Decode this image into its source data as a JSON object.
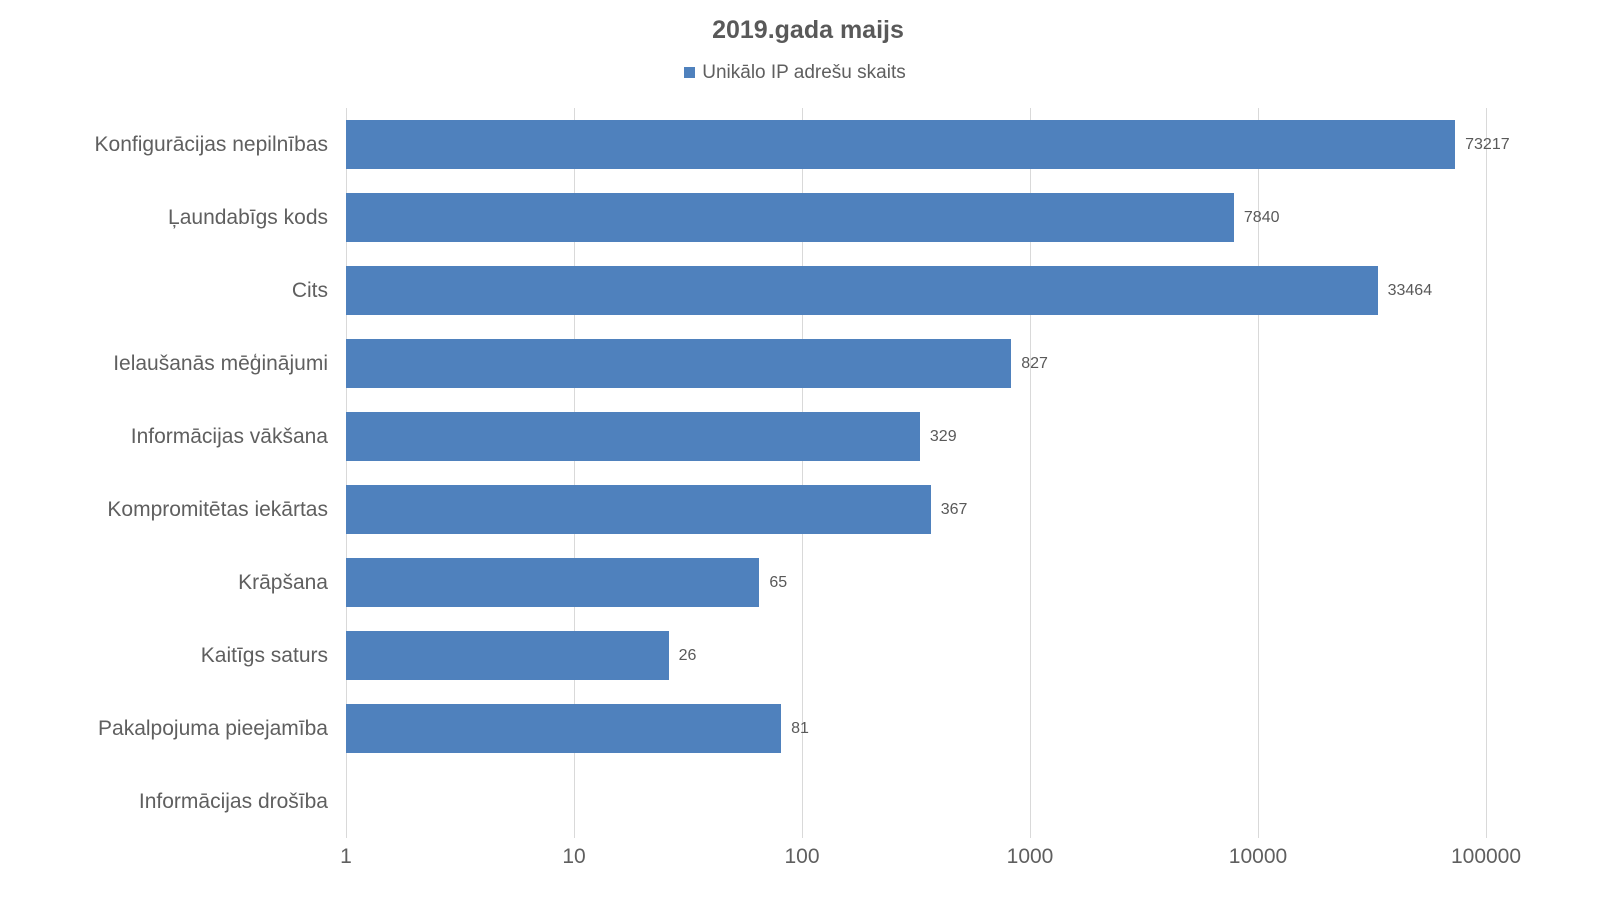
{
  "page": {
    "background": "#ffffff"
  },
  "chart_data": {
    "type": "bar",
    "orientation": "horizontal",
    "title": "2019.gada maijs",
    "legend": {
      "position": "top",
      "label": "Unikālo IP adrešu skaits"
    },
    "categories": [
      "Konfigurācijas nepilnības",
      "Ļaundabīgs kods",
      "Cits",
      "Ielaušanās mēģinājumi",
      "Informācijas vākšana",
      "Kompromitētas iekārtas",
      "Krāpšana",
      "Kaitīgs saturs",
      "Pakalpojuma pieejamība",
      "Informācijas drošība"
    ],
    "series": [
      {
        "name": "Unikālo IP adrešu skaits",
        "values": [
          73217,
          7840,
          33464,
          827,
          329,
          367,
          65,
          26,
          81,
          0
        ]
      }
    ],
    "data_labels": [
      "73217",
      "7840",
      "33464",
      "827",
      "329",
      "367",
      "65",
      "26",
      "81",
      ""
    ],
    "xscale": "log",
    "xlim": [
      1,
      100000
    ],
    "x_ticks": [
      1,
      10,
      100,
      1000,
      10000,
      100000
    ],
    "x_tick_labels": [
      "1",
      "10",
      "100",
      "1000",
      "10000",
      "100000"
    ],
    "grid": "vertical-major",
    "ylabel": "",
    "xlabel": "",
    "colors": {
      "bar": "#4f81bd",
      "title": "#595959",
      "label": "#5f5f5f",
      "value": "#595959",
      "grid": "#d9d9d9",
      "background": "#ffffff"
    }
  }
}
